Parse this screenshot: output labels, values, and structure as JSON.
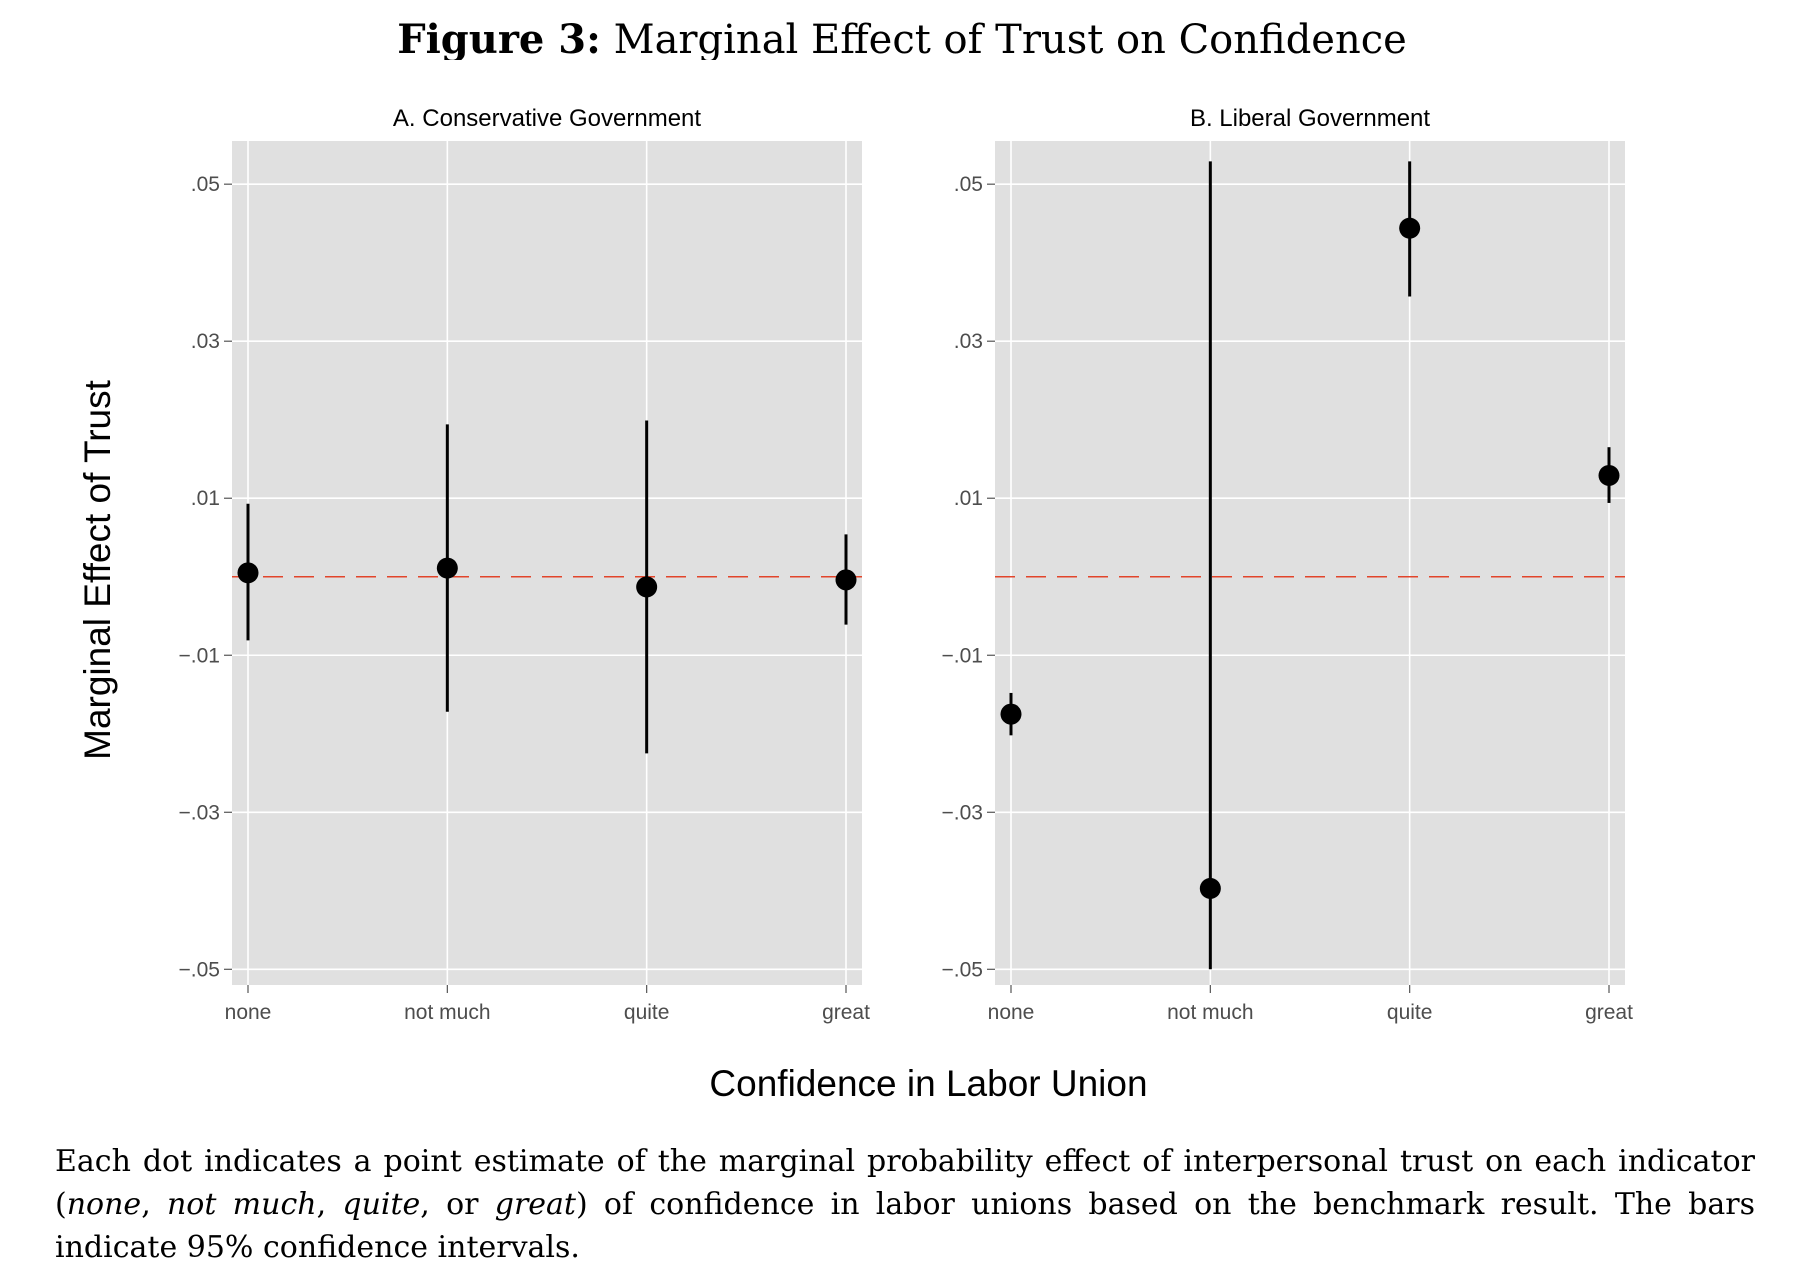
{
  "figure": {
    "label": "Figure 3:",
    "title": "Marginal Effect of Trust on Confidence"
  },
  "caption": {
    "parts": [
      {
        "text": "Each dot indicates a point estimate of the marginal probability effect of interpersonal trust on each indicator (",
        "italic": false
      },
      {
        "text": "none",
        "italic": true
      },
      {
        "text": ", ",
        "italic": false
      },
      {
        "text": "not much",
        "italic": true
      },
      {
        "text": ", ",
        "italic": false
      },
      {
        "text": "quite",
        "italic": true
      },
      {
        "text": ", or ",
        "italic": false
      },
      {
        "text": "great",
        "italic": true
      },
      {
        "text": ") of confidence in labor unions based on the benchmark result. The bars indicate 95% confidence intervals.",
        "italic": false
      }
    ]
  },
  "colors": {
    "panel_background": "#e0e0e0",
    "grid": "#ffffff",
    "point": "#000000",
    "reference_line": "#e2452b"
  },
  "chart_data": {
    "type": "scatter",
    "xlabel": "Confidence in Labor Union",
    "ylabel": "Marginal Effect of Trust",
    "categories": [
      "none",
      "not much",
      "quite",
      "great"
    ],
    "ylim": [
      -0.052,
      0.0555
    ],
    "yticks": [
      0.05,
      0.03,
      0.01,
      -0.01,
      -0.03,
      -0.05
    ],
    "ytick_labels": [
      ".05",
      ".03",
      ".01",
      "−.01",
      "−.03",
      "−.05"
    ],
    "reference_line": {
      "y": 0,
      "style": "dashed"
    },
    "grid": true,
    "panels": [
      {
        "title": "A. Conservative Government",
        "estimates": [
          0.0005,
          0.0011,
          -0.0013,
          -0.0004
        ],
        "ci_low": [
          -0.0081,
          -0.0172,
          -0.0225,
          -0.0061
        ],
        "ci_high": [
          0.0093,
          0.0194,
          0.0199,
          0.0054
        ]
      },
      {
        "title": "B. Liberal Government",
        "estimates": [
          -0.0175,
          -0.0397,
          0.0444,
          0.0129
        ],
        "ci_low": [
          -0.0202,
          -0.05,
          0.0357,
          0.0094
        ],
        "ci_high": [
          -0.0148,
          0.0529,
          0.0529,
          0.0165
        ]
      }
    ]
  }
}
